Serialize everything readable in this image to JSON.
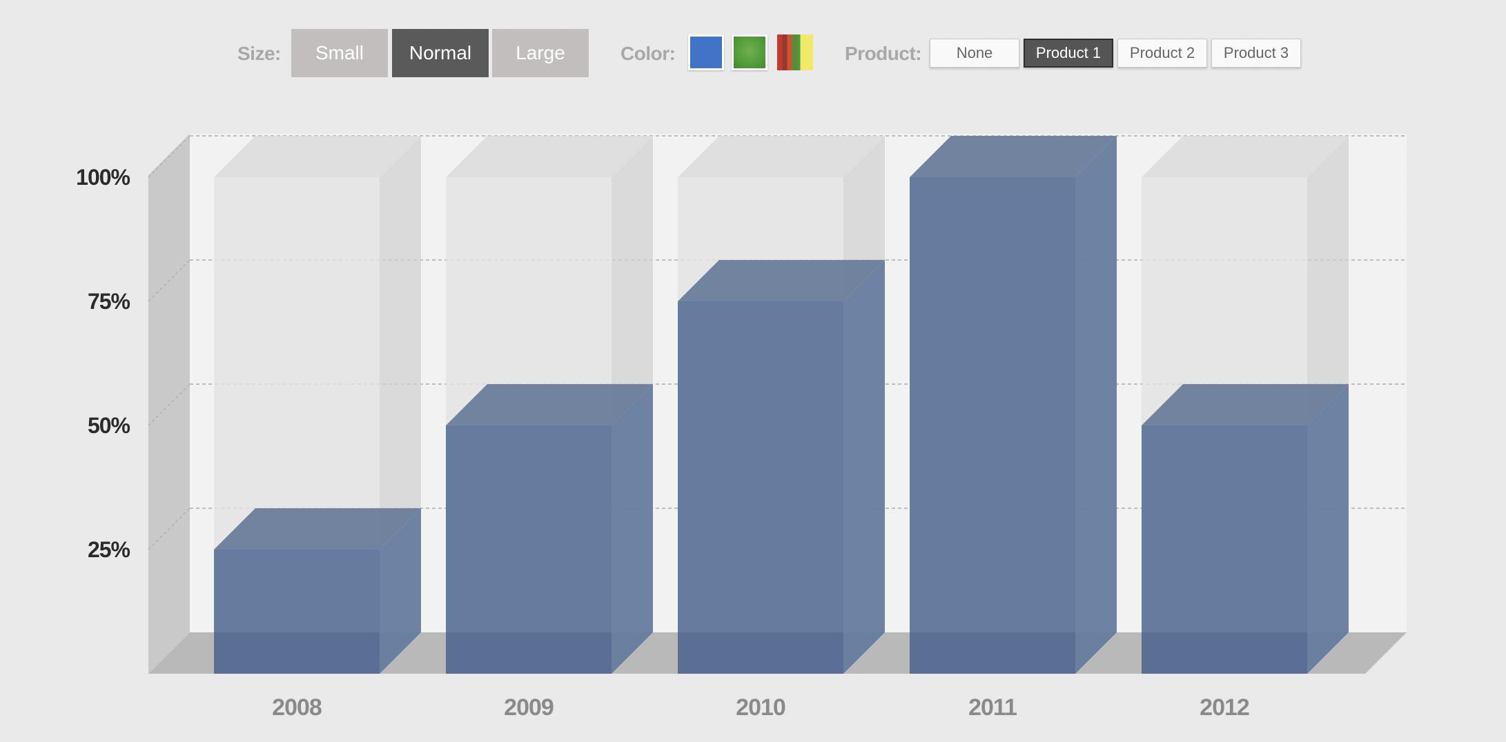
{
  "controls": {
    "size": {
      "label": "Size:",
      "options": [
        "Small",
        "Normal",
        "Large"
      ],
      "selected": "Normal"
    },
    "color": {
      "label": "Color:",
      "swatches": [
        {
          "name": "blue",
          "color": "#4174c6"
        },
        {
          "name": "green",
          "color": "#56a03f"
        },
        {
          "name": "multicolor",
          "color": "#c43a2e"
        }
      ]
    },
    "product": {
      "label": "Product:",
      "options": [
        "None",
        "Product 1",
        "Product 2",
        "Product 3"
      ],
      "selected": "Product 1"
    }
  },
  "chart_data": {
    "type": "bar",
    "style": "3d",
    "categories": [
      "2008",
      "2009",
      "2010",
      "2011",
      "2012"
    ],
    "values": [
      25,
      50,
      75,
      100,
      50
    ],
    "yticks": [
      "25%",
      "50%",
      "75%",
      "100%"
    ],
    "ylim": [
      0,
      100
    ],
    "grid": true,
    "bar_color": "#5b7399"
  }
}
